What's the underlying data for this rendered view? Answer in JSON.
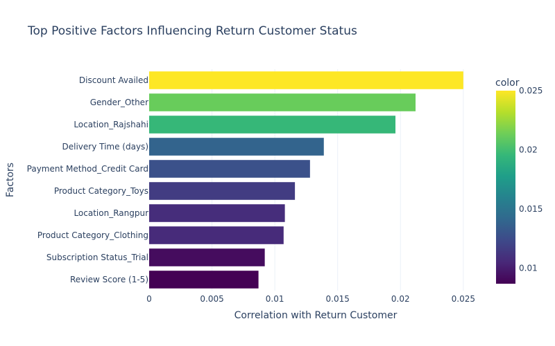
{
  "chart_data": {
    "type": "bar",
    "orientation": "horizontal",
    "title": "Top Positive Factors Influencing Return Customer Status",
    "xlabel": "Correlation with Return Customer",
    "ylabel": "Factors",
    "xlim": [
      0,
      0.0265
    ],
    "xticks": [
      0,
      0.005,
      0.01,
      0.015,
      0.02,
      0.025
    ],
    "xtick_labels": [
      "0",
      "0.005",
      "0.01",
      "0.015",
      "0.02",
      "0.025"
    ],
    "grid": true,
    "categories": [
      "Discount Availed",
      "Gender_Other",
      "Location_Rajshahi",
      "Delivery Time (days)",
      "Payment Method_Credit Card",
      "Product Category_Toys",
      "Location_Rangpur",
      "Product Category_Clothing",
      "Subscription Status_Trial",
      "Review Score (1-5)"
    ],
    "values": [
      0.025,
      0.0212,
      0.0196,
      0.0139,
      0.0128,
      0.0116,
      0.0108,
      0.0107,
      0.0092,
      0.0087
    ],
    "colorscale": "viridis",
    "colorbar": {
      "title": "color",
      "range": [
        0.0087,
        0.025
      ],
      "ticks": [
        0.01,
        0.015,
        0.02,
        0.025
      ],
      "tick_labels": [
        "0.01",
        "0.015",
        "0.02",
        "0.025"
      ]
    }
  }
}
